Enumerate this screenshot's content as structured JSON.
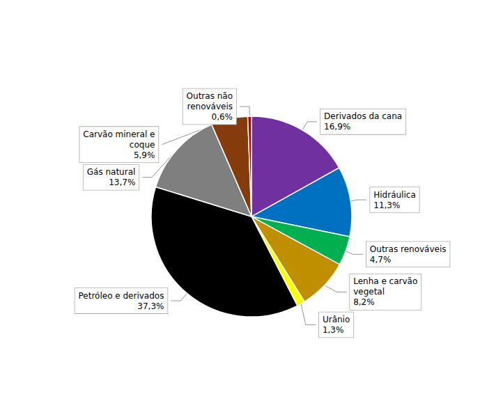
{
  "chart_data": {
    "type": "pie",
    "categories": [
      "Derivados da cana",
      "Hidráulica",
      "Outras renováveis",
      "Lenha e carvão\nvegetal",
      "Urânio",
      "Petróleo e derivados",
      "Gás natural",
      "Carvão mineral e\ncoque",
      "Outras não\nrenováveis"
    ],
    "values": [
      16.9,
      11.3,
      4.7,
      8.2,
      1.3,
      37.3,
      13.7,
      5.9,
      0.6
    ],
    "value_labels": [
      "16,9%",
      "11,3%",
      "4,7%",
      "8,2%",
      "1,3%",
      "37,3%",
      "13,7%",
      "5,9%",
      "0,6%"
    ],
    "colors": [
      "#7030A0",
      "#0070C0",
      "#00B050",
      "#BF8F00",
      "#FFFF00",
      "#000000",
      "#7F7F7F",
      "#843C0C",
      "#C00000"
    ],
    "data_labels": true
  }
}
